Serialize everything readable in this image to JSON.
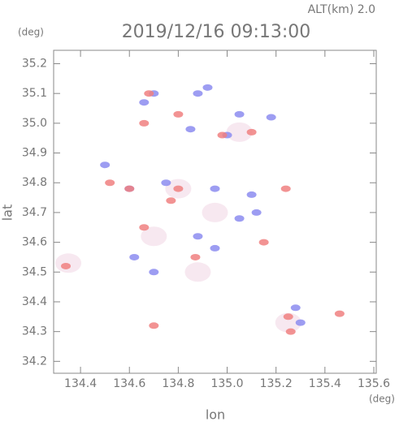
{
  "chart_data": {
    "type": "scatter",
    "annotation": "ALT(km)  2.0",
    "title": "2019/12/16 09:13:00",
    "y_unit": "(deg)",
    "x_unit": "(deg)",
    "x_label": "lon",
    "y_label": "lat",
    "xlim": [
      134.29,
      135.61
    ],
    "ylim": [
      34.16,
      35.245
    ],
    "xticks": [
      134.4,
      134.6,
      134.8,
      {
        "value": 135,
        "label": "135.0"
      },
      135.2,
      135.4,
      135.6
    ],
    "yticks": [
      34.2,
      34.3,
      34.4,
      34.5,
      34.6,
      34.7,
      34.8,
      34.9,
      {
        "value": 35,
        "label": "35.0"
      },
      35.1,
      35.2
    ],
    "series": [
      {
        "color": "#f6e6ee",
        "x": [
          134.88,
          134.8,
          135.25,
          134.35,
          134.95,
          134.7,
          135.05
        ],
        "y": [
          34.5,
          34.78,
          34.33,
          34.53,
          34.7,
          34.62,
          34.97
        ]
      },
      {
        "color": "#8c8cf0",
        "x": [
          134.92,
          134.88,
          134.66,
          134.7,
          135.05,
          135.18,
          134.85,
          135.0,
          134.75,
          134.6,
          134.95,
          135.1,
          135.05,
          135.12,
          134.88,
          134.95,
          134.62,
          134.7,
          135.28,
          135.3,
          134.5
        ],
        "y": [
          35.12,
          35.1,
          35.07,
          35.1,
          35.03,
          35.02,
          34.98,
          34.96,
          34.8,
          34.78,
          34.78,
          34.76,
          34.68,
          34.7,
          34.62,
          34.58,
          34.55,
          34.5,
          34.38,
          34.33,
          34.86
        ]
      },
      {
        "color": "#f08080",
        "x": [
          134.68,
          134.8,
          134.66,
          134.98,
          135.1,
          134.52,
          134.77,
          134.8,
          135.15,
          134.66,
          134.87,
          134.34,
          134.7,
          135.25,
          135.26,
          135.46,
          134.6,
          135.24
        ],
        "y": [
          35.1,
          35.03,
          35.0,
          34.96,
          34.97,
          34.8,
          34.74,
          34.78,
          34.6,
          34.65,
          34.55,
          34.52,
          34.32,
          34.35,
          34.3,
          34.36,
          34.78,
          34.78
        ]
      }
    ]
  }
}
